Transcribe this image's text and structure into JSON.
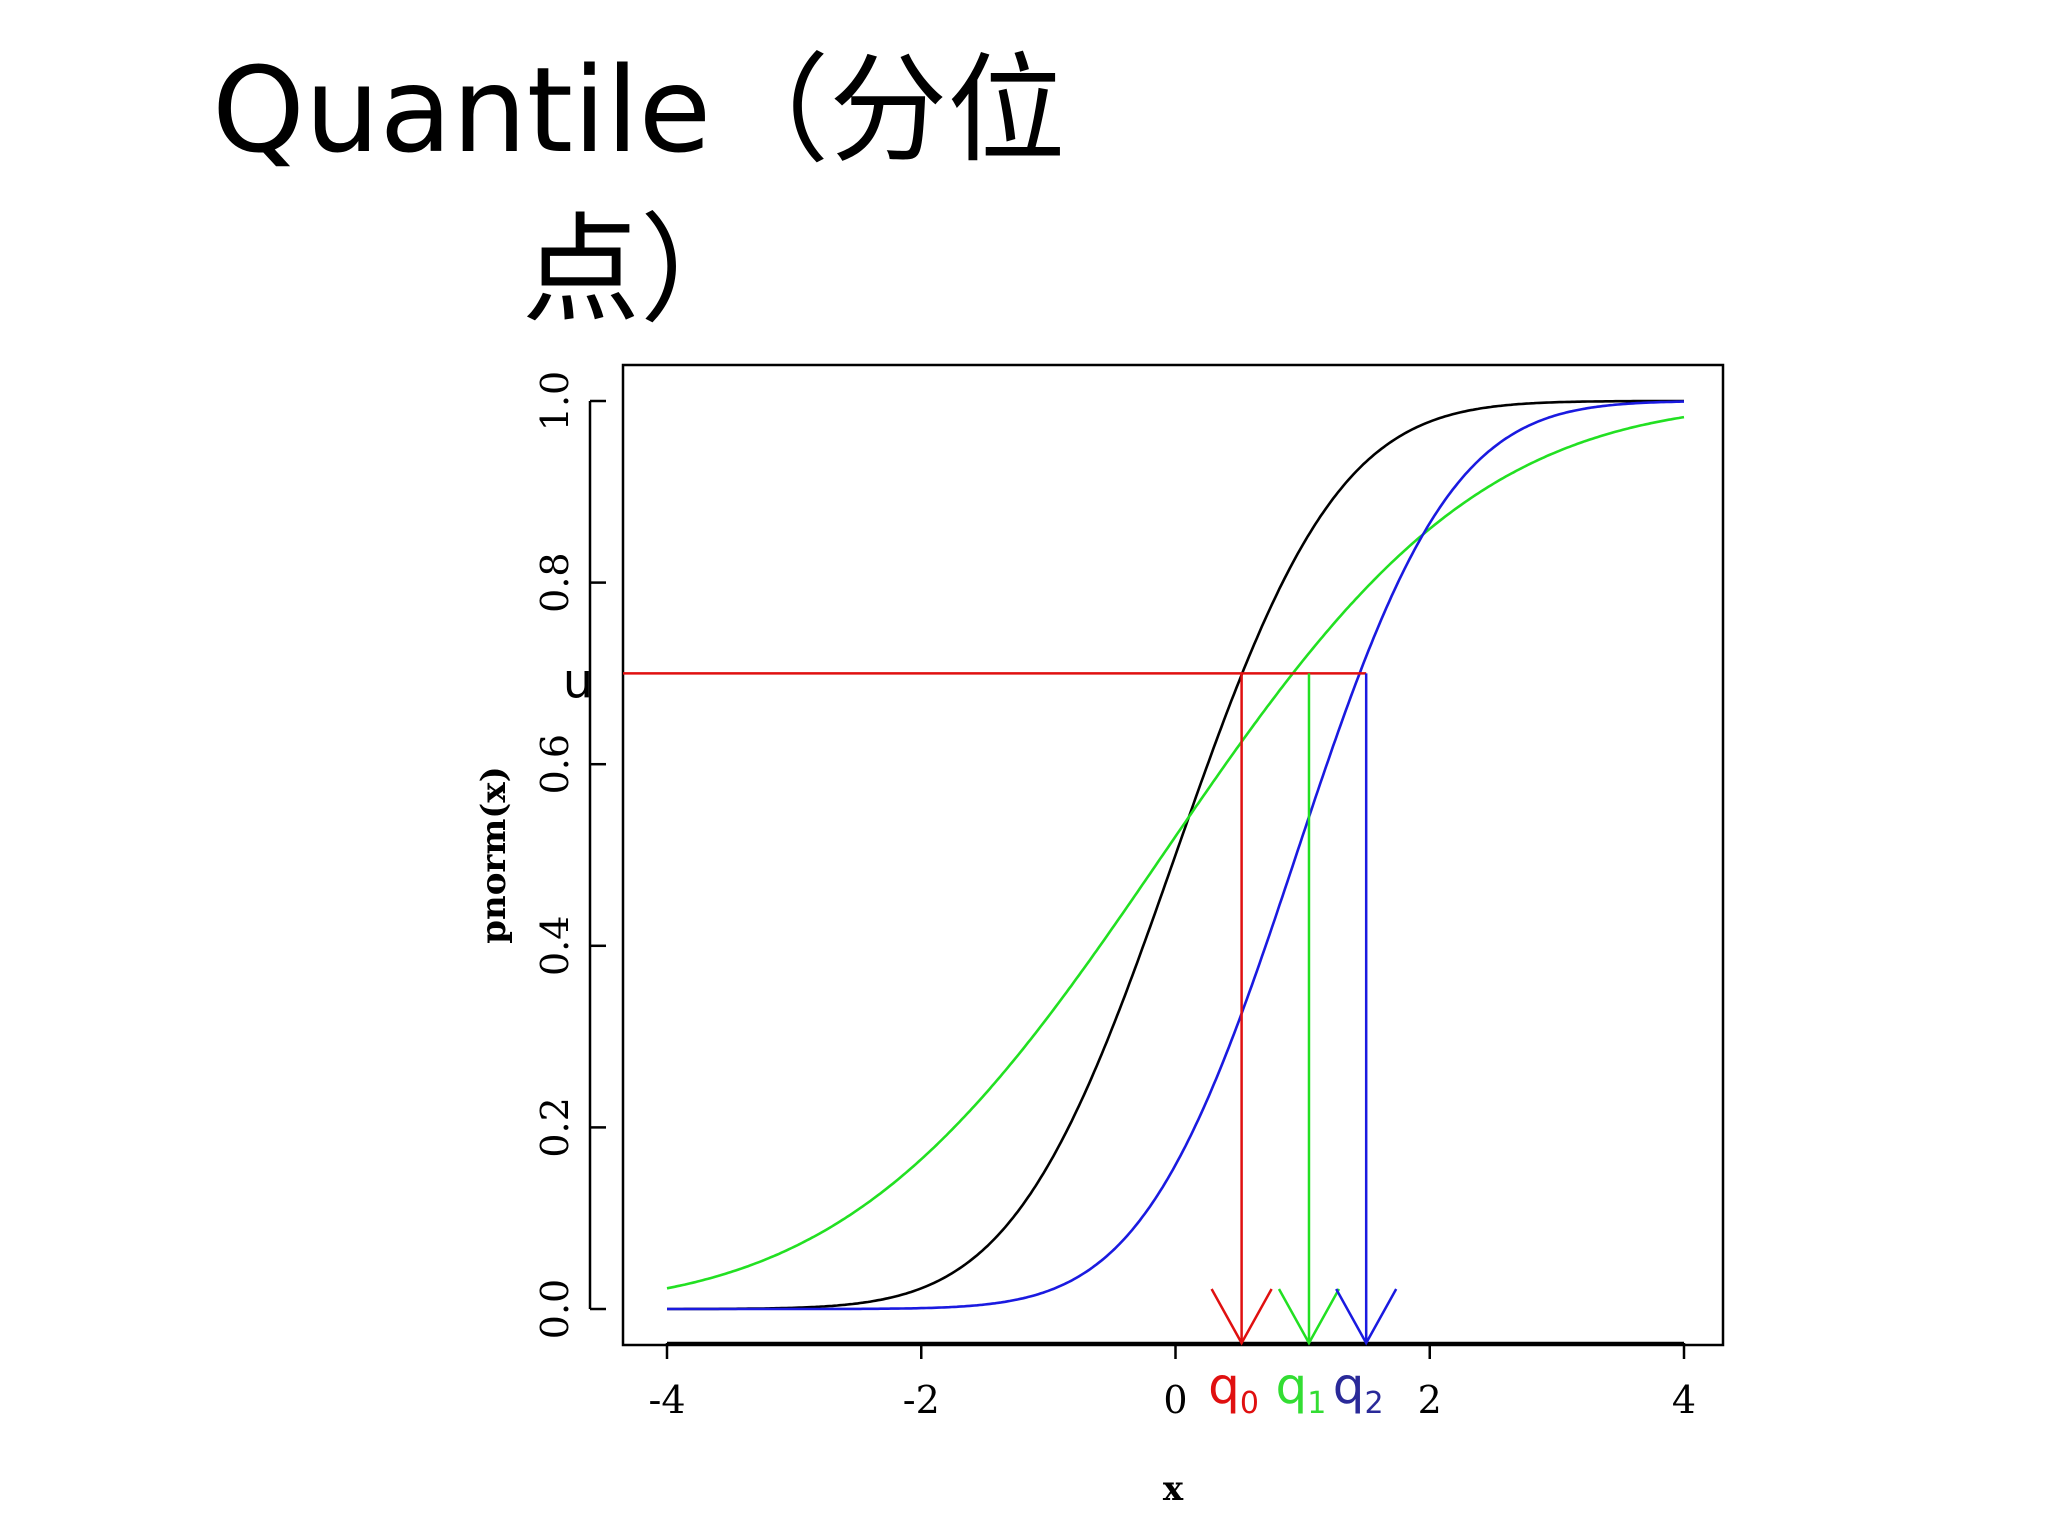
{
  "slide": {
    "title_line1": "Quantile（分位",
    "title_line2": "点）"
  },
  "colors": {
    "black_curve": "#000000",
    "green_curve": "#22e022",
    "blue_curve": "#1a1ae0",
    "red": "#e01010",
    "q1_label": "#33dd33",
    "q2_label": "#2a2a99"
  },
  "chart_data": {
    "type": "line",
    "xlabel": "x",
    "ylabel": "pnorm(x)",
    "xlim": [
      -4,
      4
    ],
    "ylim": [
      0,
      1
    ],
    "xticks": [
      {
        "value": -4,
        "label": "-4"
      },
      {
        "value": -2,
        "label": "-2"
      },
      {
        "value": 0,
        "label": "0"
      },
      {
        "value": 2,
        "label": "2"
      },
      {
        "value": 4,
        "label": "4"
      }
    ],
    "yticks": [
      {
        "value": 0,
        "label": "0.0"
      },
      {
        "value": 0.2,
        "label": "0.2"
      },
      {
        "value": 0.4,
        "label": "0.4"
      },
      {
        "value": 0.6,
        "label": "0.6"
      },
      {
        "value": 0.8,
        "label": "0.8"
      },
      {
        "value": 1,
        "label": "1.0"
      }
    ],
    "series": [
      {
        "color": "black_curve",
        "cdf": "normal",
        "mean": 0,
        "sd": 1,
        "points": [
          [
            -4,
            0
          ],
          [
            -3,
            0.001
          ],
          [
            -2,
            0.023
          ],
          [
            -1,
            0.159
          ],
          [
            -0.5,
            0.309
          ],
          [
            0,
            0.5
          ],
          [
            0.5,
            0.691
          ],
          [
            1,
            0.841
          ],
          [
            2,
            0.977
          ],
          [
            3,
            0.999
          ],
          [
            4,
            1
          ]
        ]
      },
      {
        "color": "green_curve",
        "cdf": "normal",
        "mean": -0.1,
        "sd": 1.95,
        "points": [
          [
            -4,
            0.025
          ],
          [
            -3,
            0.056
          ],
          [
            -2,
            0.141
          ],
          [
            -1,
            0.322
          ],
          [
            0,
            0.52
          ],
          [
            1,
            0.715
          ],
          [
            2,
            0.859
          ],
          [
            3,
            0.944
          ],
          [
            4,
            0.977
          ]
        ]
      },
      {
        "color": "blue_curve",
        "cdf": "normal",
        "mean": 0.95,
        "sd": 0.95,
        "points": [
          [
            -4,
            0
          ],
          [
            -2,
            0.001
          ],
          [
            -1,
            0.02
          ],
          [
            0,
            0.159
          ],
          [
            0.5,
            0.318
          ],
          [
            1,
            0.521
          ],
          [
            1.5,
            0.719
          ],
          [
            2,
            0.865
          ],
          [
            3,
            0.984
          ],
          [
            4,
            0.999
          ]
        ]
      }
    ],
    "u": {
      "label": "u",
      "value": 0.7
    },
    "quantiles": [
      {
        "name": "q",
        "sub": "0",
        "x": 0.52,
        "color": "red",
        "label_color": "red"
      },
      {
        "name": "q",
        "sub": "1",
        "x": 1.05,
        "color": "green_curve",
        "label_color": "q1_label"
      },
      {
        "name": "q",
        "sub": "2",
        "x": 1.5,
        "color": "blue_curve",
        "label_color": "q2_label"
      }
    ]
  }
}
